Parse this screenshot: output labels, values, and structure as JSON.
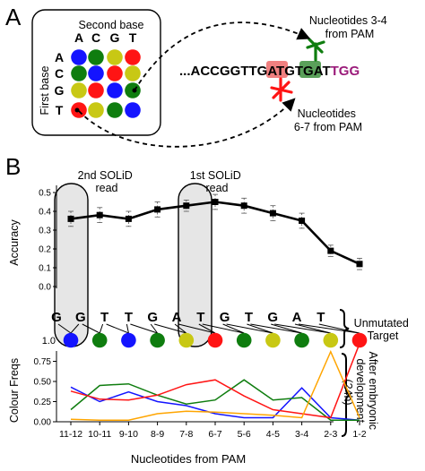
{
  "panel_a": {
    "label": "A",
    "grid_title": "Second base",
    "first_base_label": "First base",
    "column_headers": [
      "A",
      "C",
      "G",
      "T"
    ],
    "row_headers": [
      "A",
      "C",
      "G",
      "T"
    ],
    "colors": {
      "blue": "#1414ff",
      "green": "#0f7d0f",
      "yellow": "#c8c814",
      "red": "#ff1414",
      "magenta": "#9b1b7a",
      "highlight_red": "#f08080",
      "highlight_green": "#5aa05a"
    },
    "cell_colors": [
      [
        "blue",
        "green",
        "yellow",
        "red"
      ],
      [
        "green",
        "blue",
        "red",
        "yellow"
      ],
      [
        "yellow",
        "red",
        "blue",
        "green"
      ],
      [
        "red",
        "yellow",
        "green",
        "blue"
      ]
    ],
    "sequence": {
      "prefix": "...ACCGGTTG",
      "highlight_1": "AT",
      "middle": "G",
      "highlight_2": "TG",
      "suffix": "AT",
      "pam": "TGG"
    },
    "annotation_top": [
      "Nucleotides 3-4",
      "from PAM"
    ],
    "annotation_bottom": [
      "Nucleotides",
      "6-7 from PAM"
    ]
  },
  "panel_b": {
    "label": "B",
    "read_labels": [
      {
        "line1": "2nd SOLiD",
        "line2": "read"
      },
      {
        "line1": "1st SOLiD",
        "line2": "read"
      }
    ],
    "right_labels": {
      "unmutated": [
        "Unmutated",
        "Target"
      ],
      "after": [
        "After embryonic",
        "development",
        "(24h)"
      ]
    },
    "bases": [
      "G",
      "G",
      "T",
      "T",
      "G",
      "A",
      "T",
      "G",
      "T",
      "G",
      "A",
      "T"
    ],
    "base_row_value": "1.0",
    "base_colors": [
      "blue",
      "green",
      "blue",
      "green",
      "yellow",
      "red",
      "green",
      "yellow",
      "green",
      "yellow",
      "red"
    ],
    "xlabel": "Nucleotides from PAM"
  },
  "chart_data": [
    {
      "type": "line",
      "ylabel": "Accuracy",
      "ylim": [
        0,
        0.5
      ],
      "yticks": [
        "0.0",
        "0.1",
        "0.2",
        "0.3",
        "0.4",
        "0.5"
      ],
      "categories": [
        "11-12",
        "10-11",
        "9-10",
        "8-9",
        "7-8",
        "6-7",
        "5-6",
        "4-5",
        "3-4",
        "2-3",
        "1-2"
      ],
      "values": [
        0.36,
        0.38,
        0.36,
        0.41,
        0.43,
        0.45,
        0.43,
        0.39,
        0.35,
        0.19,
        0.12
      ],
      "error": [
        0.04,
        0.04,
        0.04,
        0.04,
        0.03,
        0.04,
        0.04,
        0.04,
        0.04,
        0.03,
        0.03
      ]
    },
    {
      "type": "line",
      "ylabel": "Colour Freqs",
      "ylim": [
        0,
        1.0
      ],
      "yticks": [
        "0.00",
        "0.25",
        "0.50",
        "0.75"
      ],
      "categories": [
        "11-12",
        "10-11",
        "9-10",
        "8-9",
        "7-8",
        "6-7",
        "5-6",
        "4-5",
        "3-4",
        "2-3",
        "1-2"
      ],
      "series": [
        {
          "color": "#1414ff",
          "values": [
            0.43,
            0.25,
            0.37,
            0.25,
            0.2,
            0.1,
            0.05,
            0.05,
            0.42,
            0.05,
            0.02
          ]
        },
        {
          "color": "#0f7d0f",
          "values": [
            0.15,
            0.45,
            0.47,
            0.33,
            0.22,
            0.27,
            0.52,
            0.27,
            0.3,
            0.02,
            0.02
          ]
        },
        {
          "color": "#ff1414",
          "values": [
            0.38,
            0.28,
            0.27,
            0.33,
            0.46,
            0.52,
            0.32,
            0.15,
            0.1,
            0.05,
            0.97
          ]
        },
        {
          "color": "#ffa500",
          "values": [
            0.03,
            0.02,
            0.02,
            0.1,
            0.13,
            0.12,
            0.1,
            0.08,
            0.05,
            0.87,
            0.05
          ]
        }
      ]
    }
  ]
}
